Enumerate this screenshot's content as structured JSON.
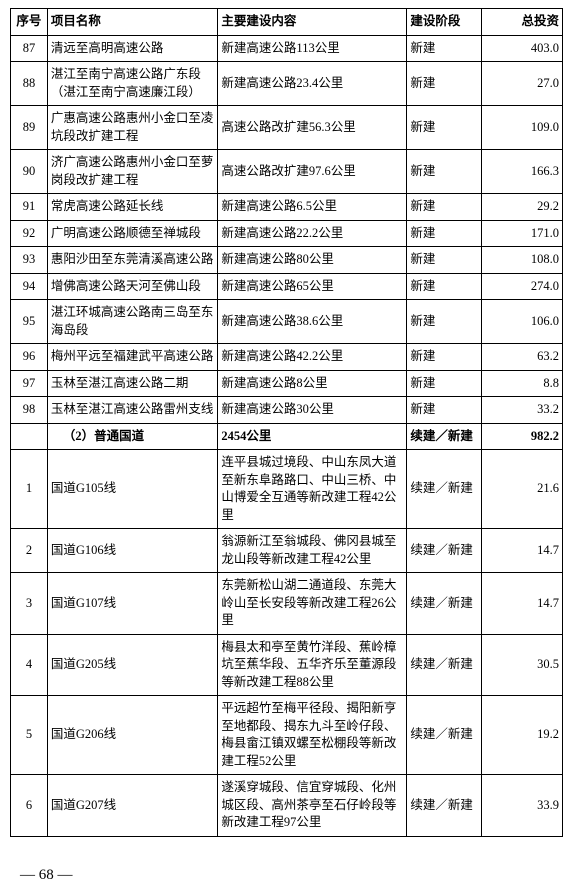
{
  "headers": {
    "seq": "序号",
    "name": "项目名称",
    "content": "主要建设内容",
    "phase": "建设阶段",
    "invest": "总投资"
  },
  "rows": [
    {
      "seq": "87",
      "name": "清远至高明高速公路",
      "content": "新建高速公路113公里",
      "phase": "新建",
      "invest": "403.0"
    },
    {
      "seq": "88",
      "name": "湛江至南宁高速公路广东段（湛江至南宁高速廉江段）",
      "content": "新建高速公路23.4公里",
      "phase": "新建",
      "invest": "27.0"
    },
    {
      "seq": "89",
      "name": "广惠高速公路惠州小金口至凌坑段改扩建工程",
      "content": "高速公路改扩建56.3公里",
      "phase": "新建",
      "invest": "109.0"
    },
    {
      "seq": "90",
      "name": "济广高速公路惠州小金口至萝岗段改扩建工程",
      "content": "高速公路改扩建97.6公里",
      "phase": "新建",
      "invest": "166.3"
    },
    {
      "seq": "91",
      "name": "常虎高速公路延长线",
      "content": "新建高速公路6.5公里",
      "phase": "新建",
      "invest": "29.2"
    },
    {
      "seq": "92",
      "name": "广明高速公路顺德至禅城段",
      "content": "新建高速公路22.2公里",
      "phase": "新建",
      "invest": "171.0"
    },
    {
      "seq": "93",
      "name": "惠阳沙田至东莞清溪高速公路",
      "content": "新建高速公路80公里",
      "phase": "新建",
      "invest": "108.0"
    },
    {
      "seq": "94",
      "name": "增佛高速公路天河至佛山段",
      "content": "新建高速公路65公里",
      "phase": "新建",
      "invest": "274.0"
    },
    {
      "seq": "95",
      "name": "湛江环城高速公路南三岛至东海岛段",
      "content": "新建高速公路38.6公里",
      "phase": "新建",
      "invest": "106.0"
    },
    {
      "seq": "96",
      "name": "梅州平远至福建武平高速公路",
      "content": "新建高速公路42.2公里",
      "phase": "新建",
      "invest": "63.2"
    },
    {
      "seq": "97",
      "name": "玉林至湛江高速公路二期",
      "content": "新建高速公路8公里",
      "phase": "新建",
      "invest": "8.8"
    },
    {
      "seq": "98",
      "name": "玉林至湛江高速公路雷州支线",
      "content": "新建高速公路30公里",
      "phase": "新建",
      "invest": "33.2"
    }
  ],
  "section": {
    "seq": "",
    "name": "（2）普通国道",
    "content": "2454公里",
    "phase": "续建／新建",
    "invest": "982.2"
  },
  "rows2": [
    {
      "seq": "1",
      "name": "国道G105线",
      "content": "连平县城过境段、中山东凤大道至新东阜路路口、中山三桥、中山博爱全互通等新改建工程42公里",
      "phase": "续建／新建",
      "invest": "21.6"
    },
    {
      "seq": "2",
      "name": "国道G106线",
      "content": "翁源新江至翁城段、佛冈县城至龙山段等新改建工程42公里",
      "phase": "续建／新建",
      "invest": "14.7"
    },
    {
      "seq": "3",
      "name": "国道G107线",
      "content": "东莞新松山湖二通道段、东莞大岭山至长安段等新改建工程26公里",
      "phase": "续建／新建",
      "invest": "14.7"
    },
    {
      "seq": "4",
      "name": "国道G205线",
      "content": "梅县太和亭至黄竹洋段、蕉岭樟坑至蕉华段、五华齐乐至董源段等新改建工程88公里",
      "phase": "续建／新建",
      "invest": "30.5"
    },
    {
      "seq": "5",
      "name": "国道G206线",
      "content": "平远超竹至梅平径段、揭阳新亨至地都段、揭东九斗至岭仔段、梅县畲江镇双螺至松棚段等新改建工程52公里",
      "phase": "续建／新建",
      "invest": "19.2"
    },
    {
      "seq": "6",
      "name": "国道G207线",
      "content": "遂溪穿城段、信宜穿城段、化州城区段、高州茶亭至石仔岭段等新改建工程97公里",
      "phase": "续建／新建",
      "invest": "33.9"
    }
  ],
  "page_number": "— 68 —"
}
